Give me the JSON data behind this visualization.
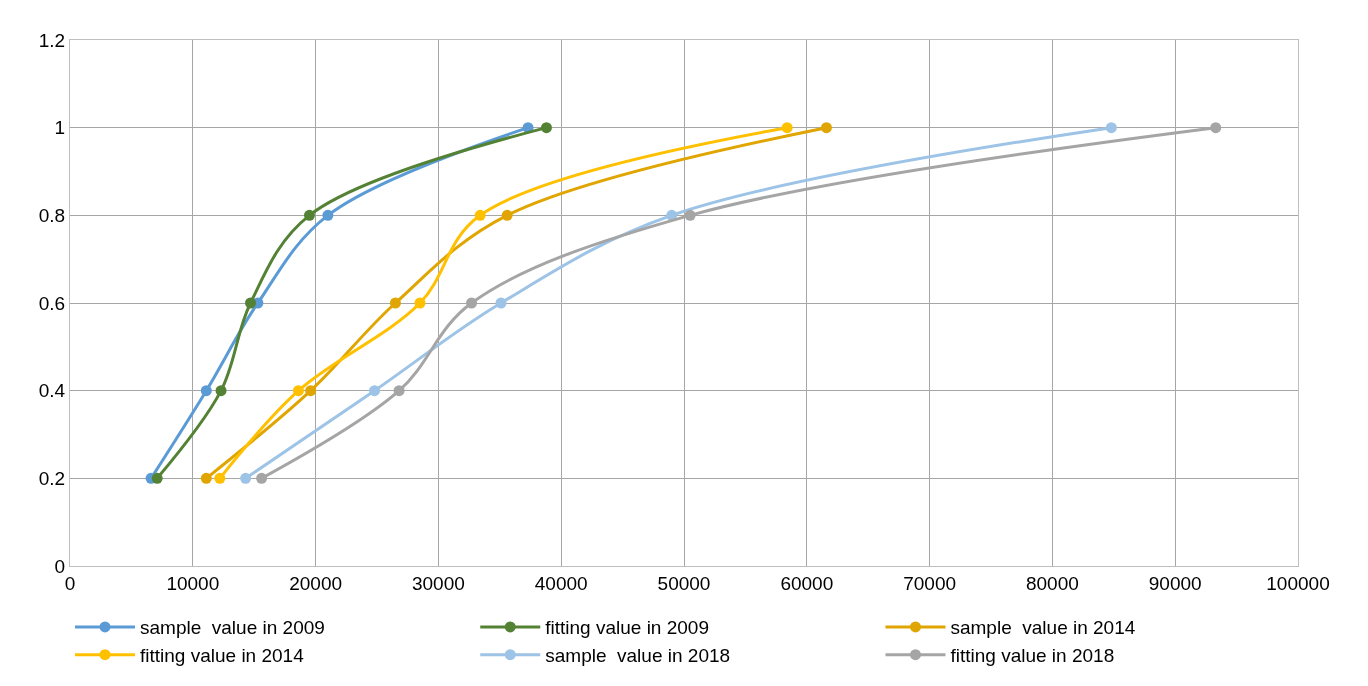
{
  "chart_data": {
    "type": "line",
    "xlim": [
      0,
      100000
    ],
    "xticks": [
      0,
      10000,
      20000,
      30000,
      40000,
      50000,
      60000,
      70000,
      80000,
      90000,
      100000
    ],
    "ylim": [
      0,
      1.2
    ],
    "yticks": [
      0,
      0.2,
      0.4,
      0.6,
      0.8,
      1,
      1.2
    ],
    "grid": true,
    "legend": "bottom",
    "marker": "circle",
    "line_style": "solid",
    "series": [
      {
        "name": "sample  value in 2009",
        "color": "#5b9bd5",
        "x": [
          6600,
          11100,
          15300,
          21000,
          37300
        ],
        "values": [
          0.2,
          0.4,
          0.6,
          0.8,
          1
        ]
      },
      {
        "name": "fitting value in 2009",
        "color": "#548235",
        "x": [
          7100,
          12300,
          14700,
          19500,
          38800
        ],
        "values": [
          0.2,
          0.4,
          0.6,
          0.8,
          1
        ]
      },
      {
        "name": "sample  value in 2014",
        "color": "#e0a500",
        "x": [
          11100,
          19600,
          26500,
          35600,
          61600
        ],
        "values": [
          0.2,
          0.4,
          0.6,
          0.8,
          1
        ]
      },
      {
        "name": "fitting value in 2014",
        "color": "#ffc000",
        "x": [
          12200,
          18600,
          28500,
          33400,
          58400
        ],
        "values": [
          0.2,
          0.4,
          0.6,
          0.8,
          1
        ]
      },
      {
        "name": "sample  value in 2018",
        "color": "#9dc3e6",
        "x": [
          14300,
          24800,
          35100,
          49000,
          84800
        ],
        "values": [
          0.2,
          0.4,
          0.6,
          0.8,
          1
        ]
      },
      {
        "name": "fitting value in 2018",
        "color": "#a5a5a5",
        "x": [
          15600,
          26800,
          32700,
          50500,
          93300
        ],
        "values": [
          0.2,
          0.4,
          0.6,
          0.8,
          1
        ]
      }
    ]
  }
}
